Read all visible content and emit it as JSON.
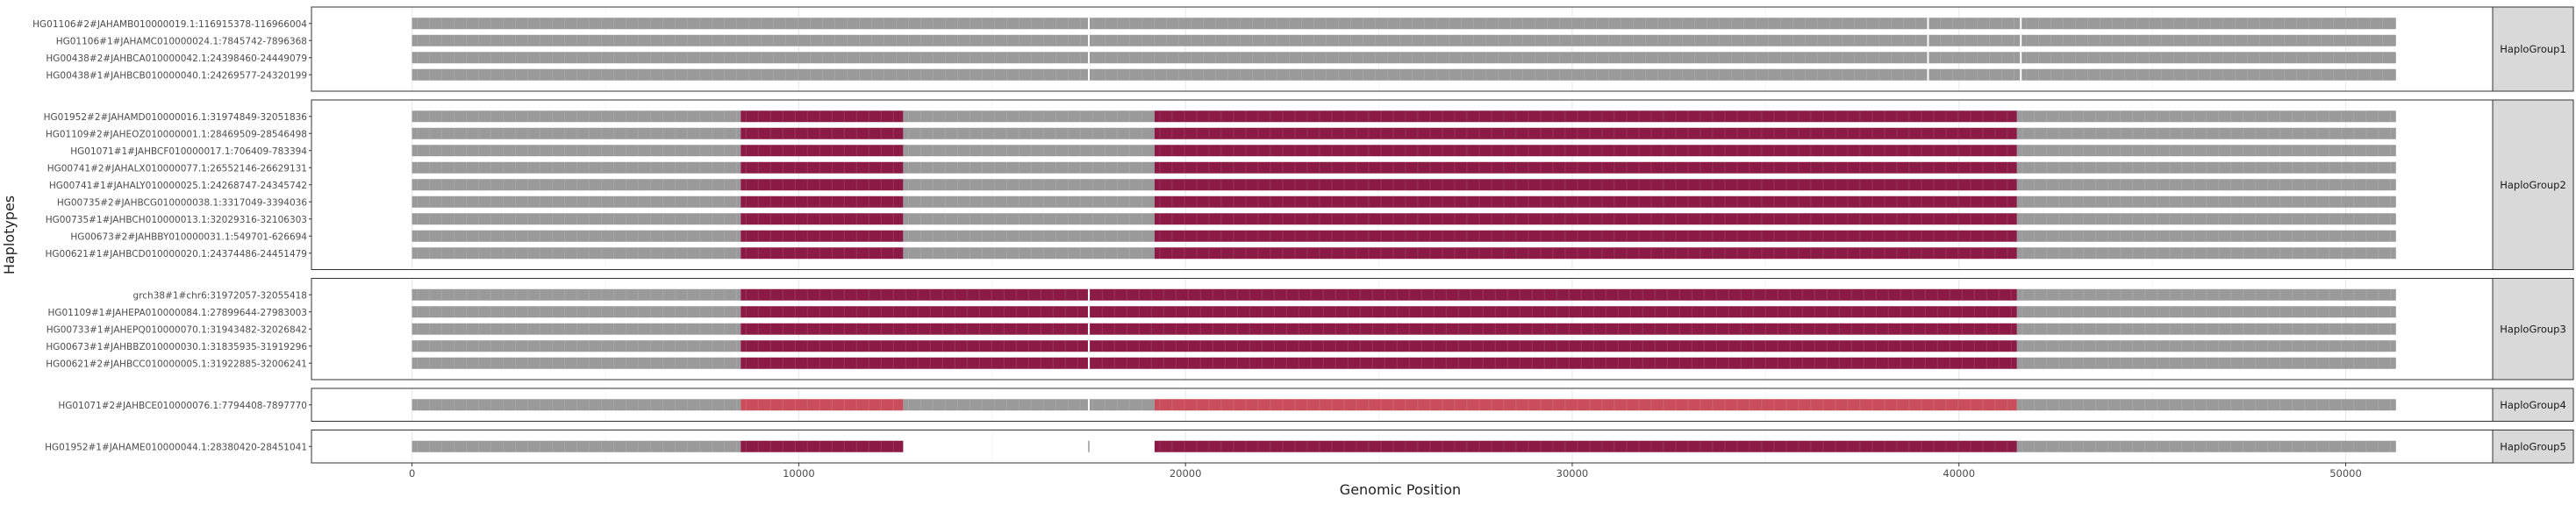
{
  "chart_data": {
    "type": "haplotype-segment-plot",
    "xlabel": "Genomic Position",
    "ylabel": "Haplotypes",
    "xlim": [
      -2600,
      53800
    ],
    "xticks": [
      0,
      10000,
      20000,
      30000,
      40000,
      50000
    ],
    "xtick_labels": [
      "0",
      "10000",
      "20000",
      "30000",
      "40000",
      "50000"
    ],
    "grid": "on",
    "colors": {
      "grey": "#9a9a9a",
      "dark_red": "#8b1a45",
      "light_red": "#c94d5a",
      "strip_bg": "#d9d9d9",
      "panel_border": "#333333",
      "grid": "#ebebeb"
    },
    "groups": [
      {
        "name": "HaploGroup1",
        "haplotypes": [
          "HG01106#2#JAHAMB010000019.1:116915378-116966004",
          "HG01106#1#JAHAMC010000024.1:7845742-7896368",
          "HG00438#2#JAHBCA010000042.1:24398460-24449079",
          "HG00438#1#JAHBCB010000040.1:24269577-24320199"
        ],
        "segments": [
          {
            "start": 0,
            "end": 51300,
            "color": "grey"
          }
        ],
        "breaks": [
          17500,
          39200,
          41600
        ]
      },
      {
        "name": "HaploGroup2",
        "haplotypes": [
          "HG01952#2#JAHAMD010000016.1:31974849-32051836",
          "HG01109#2#JAHEOZ010000001.1:28469509-28546498",
          "HG01071#1#JAHBCF010000017.1:706409-783394",
          "HG00741#2#JAHALX010000077.1:26552146-26629131",
          "HG00741#1#JAHALY010000025.1:24268747-24345742",
          "HG00735#2#JAHBCG010000038.1:3317049-3394036",
          "HG00735#1#JAHBCH010000013.1:32029316-32106303",
          "HG00673#2#JAHBBY010000031.1:549701-626694",
          "HG00621#1#JAHBCD010000020.1:24374486-24451479"
        ],
        "segments": [
          {
            "start": 0,
            "end": 8500,
            "color": "grey"
          },
          {
            "start": 8500,
            "end": 12700,
            "color": "dark_red"
          },
          {
            "start": 12700,
            "end": 19200,
            "color": "grey"
          },
          {
            "start": 19200,
            "end": 41500,
            "color": "dark_red"
          },
          {
            "start": 41500,
            "end": 51300,
            "color": "grey"
          }
        ],
        "breaks": []
      },
      {
        "name": "HaploGroup3",
        "haplotypes": [
          "grch38#1#chr6:31972057-32055418",
          "HG01109#1#JAHEPA010000084.1:27899644-27983003",
          "HG00733#1#JAHEPQ010000070.1:31943482-32026842",
          "HG00673#1#JAHBBZ010000030.1:31835935-31919296",
          "HG00621#2#JAHBCC010000005.1:31922885-32006241"
        ],
        "segments": [
          {
            "start": 0,
            "end": 8500,
            "color": "grey"
          },
          {
            "start": 8500,
            "end": 41500,
            "color": "dark_red"
          },
          {
            "start": 41500,
            "end": 51300,
            "color": "grey"
          }
        ],
        "breaks": [
          17500
        ]
      },
      {
        "name": "HaploGroup4",
        "haplotypes": [
          "HG01071#2#JAHBCE010000076.1:7794408-7897770"
        ],
        "segments": [
          {
            "start": 0,
            "end": 8500,
            "color": "grey"
          },
          {
            "start": 8500,
            "end": 12700,
            "color": "light_red"
          },
          {
            "start": 12700,
            "end": 19200,
            "color": "grey"
          },
          {
            "start": 19200,
            "end": 41500,
            "color": "light_red"
          },
          {
            "start": 41500,
            "end": 51300,
            "color": "grey"
          }
        ],
        "breaks": [
          17500
        ]
      },
      {
        "name": "HaploGroup5",
        "haplotypes": [
          "HG01952#1#JAHAME010000044.1:28380420-28451041"
        ],
        "segments": [
          {
            "start": 0,
            "end": 8500,
            "color": "grey"
          },
          {
            "start": 8500,
            "end": 12700,
            "color": "dark_red"
          },
          {
            "start": 19200,
            "end": 41500,
            "color": "dark_red"
          },
          {
            "start": 41500,
            "end": 51300,
            "color": "grey"
          }
        ],
        "marks": [
          17500
        ],
        "breaks": []
      }
    ]
  }
}
